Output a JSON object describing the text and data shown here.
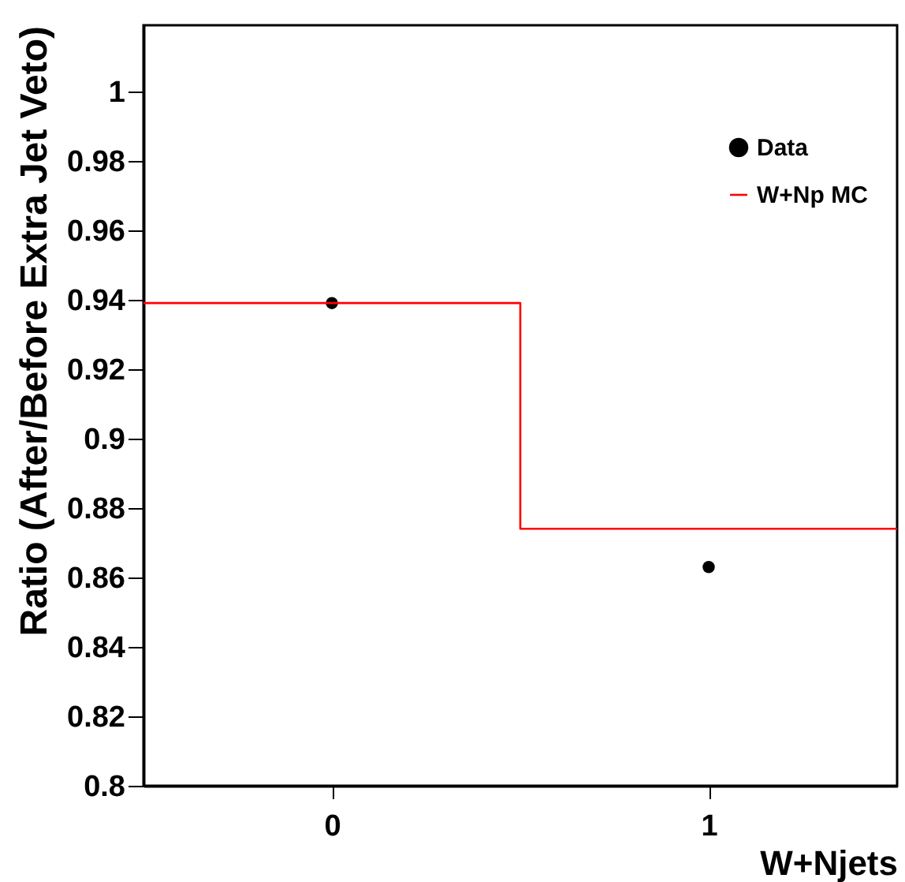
{
  "chart_data": {
    "type": "scatter",
    "xlabel": "W+Njets",
    "ylabel": "Ratio (After/Before Extra Jet Veto)",
    "xlim": [
      -0.5,
      1.5
    ],
    "xticks": [
      0,
      1
    ],
    "ylim": [
      0.8,
      1.019
    ],
    "yticks": [
      0.8,
      0.82,
      0.84,
      0.86,
      0.88,
      0.9,
      0.92,
      0.94,
      0.96,
      0.98,
      1
    ],
    "grid": false,
    "legend": "top right",
    "series": [
      {
        "name": "Data",
        "type": "scatter",
        "color": "#000000",
        "marker": "circle",
        "x": [
          0,
          1
        ],
        "values": [
          0.939,
          0.863
        ]
      },
      {
        "name": "W+Np MC",
        "type": "step",
        "color": "#ff0000",
        "marker": "none",
        "x": [
          -0.5,
          0.5,
          1.5
        ],
        "values": [
          0.939,
          0.874,
          0.874
        ]
      }
    ]
  }
}
